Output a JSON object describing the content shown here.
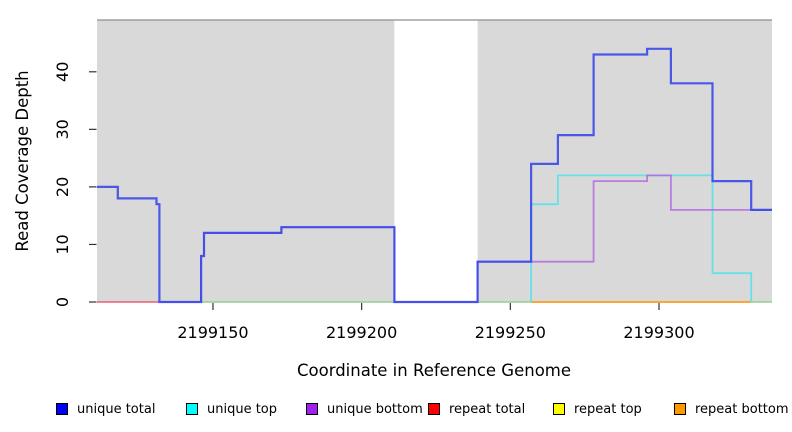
{
  "chart": {
    "x_axis": {
      "label": "Coordinate in Reference Genome",
      "ticks": [
        {
          "coord": 2199150,
          "label": "2199150"
        },
        {
          "coord": 2199200,
          "label": "2199200"
        },
        {
          "coord": 2199250,
          "label": "2199250"
        },
        {
          "coord": 2199300,
          "label": "2199300"
        }
      ]
    },
    "y_axis": {
      "label": "Read Coverage Depth",
      "ticks": [
        {
          "value": 0,
          "label": "0"
        },
        {
          "value": 10,
          "label": "10"
        },
        {
          "value": 20,
          "label": "20"
        },
        {
          "value": 30,
          "label": "30"
        },
        {
          "value": 40,
          "label": "40"
        }
      ]
    }
  },
  "chart_data": {
    "type": "line",
    "subtype": "step-coverage",
    "title": "",
    "xlabel": "Coordinate in Reference Genome",
    "ylabel": "Read Coverage Depth",
    "xlim": [
      2199111,
      2199338
    ],
    "ylim": [
      0,
      49
    ],
    "grid": false,
    "panel_background": "#d9d9d9",
    "panel_top_edge_color": "#8f8f8f",
    "shaded_regions": [
      [
        2199111,
        2199211
      ],
      [
        2199239,
        2199338
      ]
    ],
    "white_gap_region": [
      2199211,
      2199239
    ],
    "series": [
      {
        "name": "repeat top",
        "legend_color": "#FFFF00",
        "rendered_line_color": "#94CF94",
        "opacity": 1,
        "width": 1.6,
        "runs": [
          [
            2199146,
            2199211,
            0
          ],
          [
            2199239,
            2199257,
            0
          ],
          [
            2199331,
            2199338,
            0
          ]
        ]
      },
      {
        "name": "repeat total",
        "legend_color": "#FF0000",
        "rendered_line_color": "#E8596B",
        "opacity": 0.95,
        "width": 1.6,
        "runs": [
          [
            2199111,
            2199132,
            0
          ]
        ]
      },
      {
        "name": "repeat bottom",
        "legend_color": "#FF9900",
        "rendered_line_color": "#FF9D1E",
        "opacity": 1,
        "width": 1.8,
        "runs": [
          [
            2199257,
            2199331,
            0
          ]
        ]
      },
      {
        "name": "unique top",
        "legend_color": "#00FFFF",
        "rendered_line_color": "#5FE1EA",
        "opacity": 0.95,
        "width": 1.8,
        "runs": [
          [
            2199257,
            2199257,
            0
          ],
          [
            2199257,
            2199266,
            17
          ],
          [
            2199266,
            2199318,
            22
          ],
          [
            2199318,
            2199331,
            5
          ],
          [
            2199331,
            2199331,
            0
          ]
        ]
      },
      {
        "name": "unique bottom",
        "legend_color": "#A020F0",
        "rendered_line_color": "#B164DE",
        "opacity": 0.8,
        "width": 1.8,
        "runs": [
          [
            2199132,
            2199146,
            0
          ],
          [
            2199146,
            2199147,
            8
          ],
          [
            2199147,
            2199173,
            12
          ],
          [
            2199173,
            2199211,
            13
          ],
          [
            2199211,
            2199239,
            0
          ],
          [
            2199239,
            2199278,
            7
          ],
          [
            2199278,
            2199296,
            21
          ],
          [
            2199296,
            2199304,
            22
          ],
          [
            2199304,
            2199338,
            16
          ]
        ]
      },
      {
        "name": "unique total",
        "legend_color": "#0000FF",
        "rendered_line_color": "#3646EA",
        "opacity": 0.88,
        "width": 2.2,
        "runs": [
          [
            2199111,
            2199118,
            20
          ],
          [
            2199118,
            2199131,
            18
          ],
          [
            2199131,
            2199132,
            17
          ],
          [
            2199132,
            2199146,
            0
          ],
          [
            2199146,
            2199147,
            8
          ],
          [
            2199147,
            2199173,
            12
          ],
          [
            2199173,
            2199211,
            13
          ],
          [
            2199211,
            2199239,
            0
          ],
          [
            2199239,
            2199257,
            7
          ],
          [
            2199257,
            2199266,
            24
          ],
          [
            2199266,
            2199278,
            29
          ],
          [
            2199278,
            2199296,
            43
          ],
          [
            2199296,
            2199304,
            44
          ],
          [
            2199304,
            2199318,
            38
          ],
          [
            2199318,
            2199331,
            21
          ],
          [
            2199331,
            2199338,
            16
          ]
        ]
      }
    ],
    "legend_position": "bottom"
  },
  "legend": {
    "items": [
      {
        "label": "unique total",
        "color": "#0000FF"
      },
      {
        "label": "unique top",
        "color": "#00FFFF"
      },
      {
        "label": "unique bottom",
        "color": "#A020F0"
      },
      {
        "label": "repeat total",
        "color": "#FF0000"
      },
      {
        "label": "repeat top",
        "color": "#FFFF00"
      },
      {
        "label": "repeat bottom",
        "color": "#FF9900"
      }
    ]
  }
}
